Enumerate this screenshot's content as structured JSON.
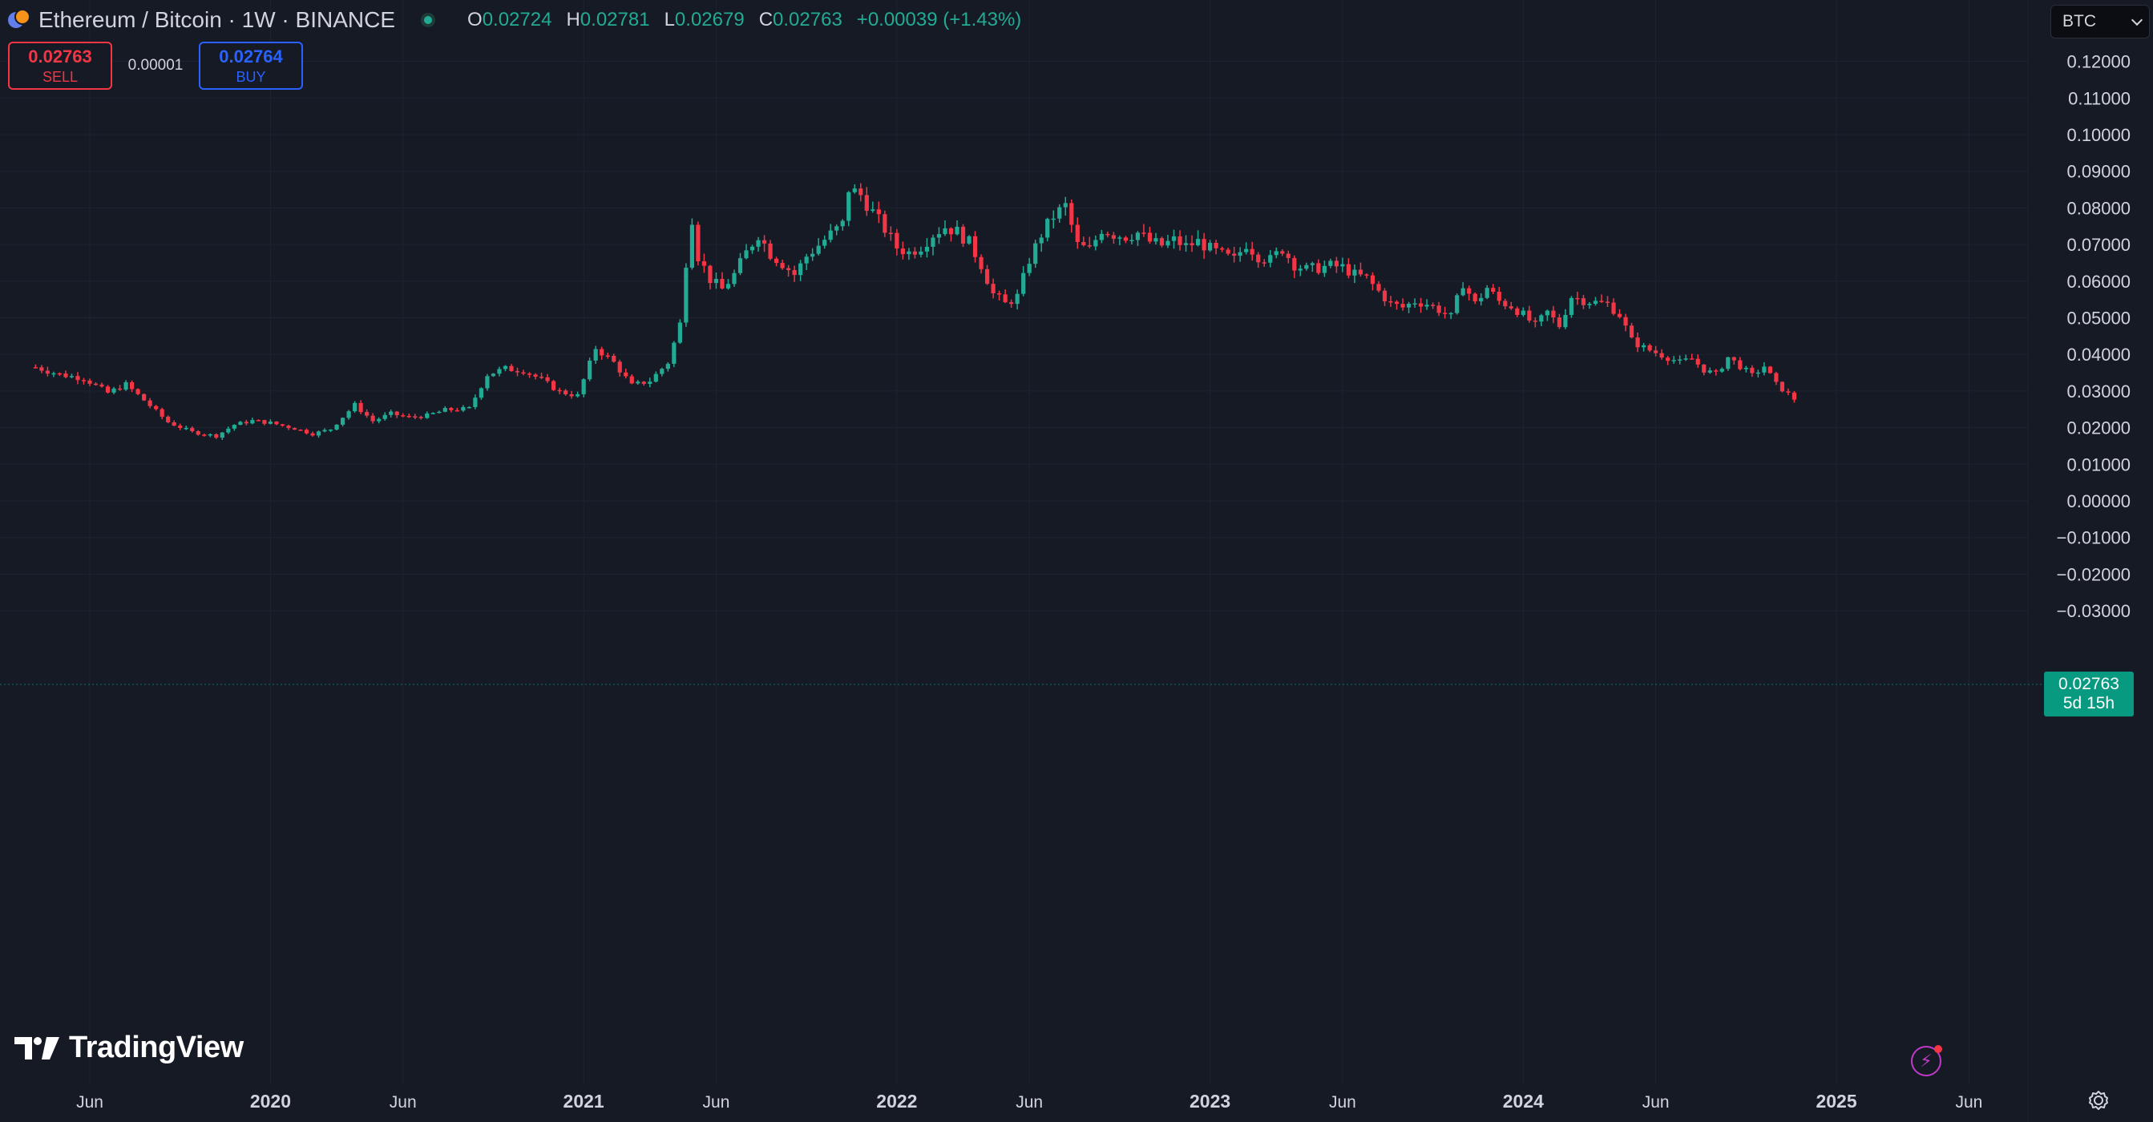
{
  "header": {
    "symbol_title": "Ethereum / Bitcoin · 1W · BINANCE",
    "ohlc": {
      "o_label": "O",
      "o_value": "0.02724",
      "h_label": "H",
      "h_value": "0.02781",
      "l_label": "L",
      "l_value": "0.02679",
      "c_label": "C",
      "c_value": "0.02763",
      "change": "+0.00039 (+1.43%)"
    }
  },
  "trade": {
    "sell_price": "0.02763",
    "sell_label": "SELL",
    "spread": "0.00001",
    "buy_price": "0.02764",
    "buy_label": "BUY"
  },
  "currency_selector": {
    "value": "BTC"
  },
  "last_price_label": {
    "price": "0.02763",
    "countdown": "5d 15h"
  },
  "branding": {
    "logo_text": "TradingView"
  },
  "icons": {
    "symbol": "eth-btc-icon",
    "status": "market-open-dot-icon",
    "alert": "lightning-icon",
    "settings": "gear-icon"
  },
  "colors": {
    "up": "#22ab94",
    "down": "#f23645",
    "background": "#161a25",
    "grid": "#1f2330",
    "last_price": "#089981"
  },
  "chart_data": {
    "type": "candlestick",
    "ylim": [
      -0.035,
      0.135
    ],
    "y_ticks": [
      "−0.03000",
      "−0.02000",
      "−0.01000",
      "0.00000",
      "0.01000",
      "0.02000",
      "0.03000",
      "0.04000",
      "0.05000",
      "0.06000",
      "0.07000",
      "0.08000",
      "0.09000",
      "0.10000",
      "0.11000",
      "0.12000"
    ],
    "x_ticks": [
      "Jun",
      "2020",
      "Jun",
      "2021",
      "Jun",
      "2022",
      "Jun",
      "2023",
      "Jun",
      "2024",
      "Jun",
      "2025",
      "Jun"
    ],
    "x_tick_positions_weeks": [
      0,
      30,
      52,
      82,
      104,
      134,
      156,
      186,
      208,
      238,
      260,
      290,
      312
    ],
    "grid": true,
    "last_price": 0.02763,
    "close_path": [
      [
        -9,
        0.0365
      ],
      [
        -5,
        0.0345
      ],
      [
        -1,
        0.0335
      ],
      [
        3,
        0.0295
      ],
      [
        6,
        0.0318
      ],
      [
        9,
        0.0275
      ],
      [
        13,
        0.0215
      ],
      [
        17,
        0.0188
      ],
      [
        21,
        0.0177
      ],
      [
        24,
        0.0208
      ],
      [
        27,
        0.0219
      ],
      [
        30,
        0.0213
      ],
      [
        34,
        0.0198
      ],
      [
        37,
        0.0183
      ],
      [
        40,
        0.0196
      ],
      [
        44,
        0.0262
      ],
      [
        47,
        0.0218
      ],
      [
        50,
        0.0238
      ],
      [
        53,
        0.0228
      ],
      [
        56,
        0.0233
      ],
      [
        59,
        0.0248
      ],
      [
        63,
        0.0252
      ],
      [
        66,
        0.0345
      ],
      [
        69,
        0.0361
      ],
      [
        72,
        0.0356
      ],
      [
        75,
        0.0331
      ],
      [
        78,
        0.0298
      ],
      [
        81,
        0.0287
      ],
      [
        84,
        0.0418
      ],
      [
        87,
        0.0378
      ],
      [
        90,
        0.0315
      ],
      [
        93,
        0.0328
      ],
      [
        96,
        0.0378
      ],
      [
        98,
        0.0483
      ],
      [
        99,
        0.0653
      ],
      [
        100,
        0.0773
      ],
      [
        101,
        0.0668
      ],
      [
        103,
        0.0605
      ],
      [
        105,
        0.0578
      ],
      [
        107,
        0.0618
      ],
      [
        109,
        0.0678
      ],
      [
        111,
        0.0728
      ],
      [
        113,
        0.0675
      ],
      [
        115,
        0.0648
      ],
      [
        117,
        0.0618
      ],
      [
        119,
        0.0668
      ],
      [
        121,
        0.0698
      ],
      [
        123,
        0.0728
      ],
      [
        125,
        0.0755
      ],
      [
        126,
        0.0852
      ],
      [
        128,
        0.0835
      ],
      [
        130,
        0.0788
      ],
      [
        132,
        0.0742
      ],
      [
        134,
        0.0692
      ],
      [
        136,
        0.0678
      ],
      [
        138,
        0.0695
      ],
      [
        140,
        0.0728
      ],
      [
        142,
        0.0748
      ],
      [
        144,
        0.0735
      ],
      [
        146,
        0.0705
      ],
      [
        148,
        0.0645
      ],
      [
        150,
        0.0565
      ],
      [
        152,
        0.0538
      ],
      [
        154,
        0.0558
      ],
      [
        156,
        0.0658
      ],
      [
        158,
        0.0728
      ],
      [
        160,
        0.0778
      ],
      [
        162,
        0.0805
      ],
      [
        164,
        0.0698
      ],
      [
        166,
        0.0685
      ],
      [
        168,
        0.0742
      ],
      [
        170,
        0.0728
      ],
      [
        172,
        0.0722
      ],
      [
        174,
        0.0732
      ],
      [
        176,
        0.0708
      ],
      [
        178,
        0.0698
      ],
      [
        180,
        0.0712
      ],
      [
        182,
        0.0695
      ],
      [
        184,
        0.0708
      ],
      [
        186,
        0.0688
      ],
      [
        188,
        0.0672
      ],
      [
        190,
        0.0658
      ],
      [
        192,
        0.0702
      ],
      [
        194,
        0.0668
      ],
      [
        196,
        0.0658
      ],
      [
        198,
        0.0688
      ],
      [
        200,
        0.0645
      ],
      [
        202,
        0.0632
      ],
      [
        204,
        0.0636
      ],
      [
        206,
        0.0642
      ],
      [
        208,
        0.0638
      ],
      [
        210,
        0.0618
      ],
      [
        212,
        0.0608
      ],
      [
        214,
        0.0572
      ],
      [
        216,
        0.0538
      ],
      [
        218,
        0.0528
      ],
      [
        220,
        0.0545
      ],
      [
        222,
        0.0538
      ],
      [
        224,
        0.0522
      ],
      [
        226,
        0.0502
      ],
      [
        228,
        0.0595
      ],
      [
        230,
        0.0538
      ],
      [
        232,
        0.0582
      ],
      [
        234,
        0.0545
      ],
      [
        236,
        0.0532
      ],
      [
        238,
        0.0508
      ],
      [
        240,
        0.0478
      ],
      [
        242,
        0.0515
      ],
      [
        244,
        0.0478
      ],
      [
        246,
        0.0558
      ],
      [
        248,
        0.0548
      ],
      [
        250,
        0.0542
      ],
      [
        252,
        0.0538
      ],
      [
        254,
        0.0508
      ],
      [
        256,
        0.0438
      ],
      [
        258,
        0.0418
      ],
      [
        260,
        0.0405
      ],
      [
        262,
        0.0392
      ],
      [
        264,
        0.0378
      ],
      [
        266,
        0.0388
      ],
      [
        268,
        0.0358
      ],
      [
        270,
        0.0345
      ],
      [
        272,
        0.0392
      ],
      [
        274,
        0.0368
      ],
      [
        276,
        0.0342
      ],
      [
        278,
        0.0368
      ],
      [
        280,
        0.0318
      ],
      [
        282,
        0.0292
      ],
      [
        283,
        0.0276
      ]
    ]
  }
}
